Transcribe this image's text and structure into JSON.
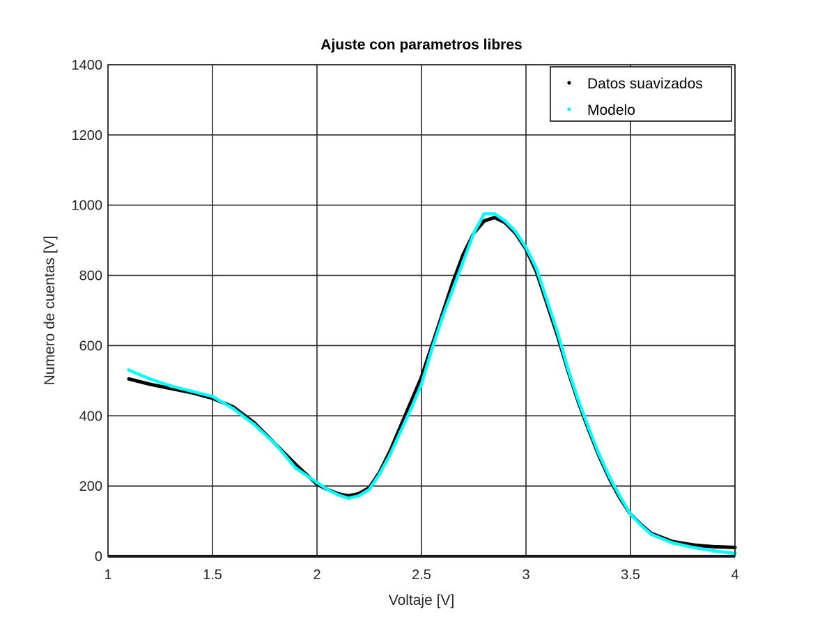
{
  "chart_data": {
    "type": "scatter",
    "title": "Ajuste con parametros libres",
    "xlabel": "Voltaje [V]",
    "ylabel": "Numero de cuentas [V]",
    "xlim": [
      1,
      4
    ],
    "ylim": [
      0,
      1400
    ],
    "xticks": [
      1,
      1.5,
      2,
      2.5,
      3,
      3.5,
      4
    ],
    "xtick_labels": [
      "1",
      "1.5",
      "2",
      "2.5",
      "3",
      "3.5",
      "4"
    ],
    "yticks": [
      0,
      200,
      400,
      600,
      800,
      1000,
      1200,
      1400
    ],
    "ytick_labels": [
      "0",
      "200",
      "400",
      "600",
      "800",
      "1000",
      "1200",
      "1400"
    ],
    "grid": true,
    "legend_position": "top-right",
    "series": [
      {
        "name": "Datos suavizados",
        "color": "#000000",
        "x": [
          1.1,
          1.2,
          1.3,
          1.4,
          1.5,
          1.6,
          1.7,
          1.8,
          1.9,
          2.0,
          2.05,
          2.1,
          2.15,
          2.2,
          2.25,
          2.3,
          2.35,
          2.4,
          2.45,
          2.5,
          2.55,
          2.6,
          2.65,
          2.7,
          2.75,
          2.8,
          2.85,
          2.9,
          2.95,
          3.0,
          3.05,
          3.1,
          3.15,
          3.2,
          3.25,
          3.3,
          3.35,
          3.4,
          3.45,
          3.5,
          3.55,
          3.6,
          3.7,
          3.8,
          3.9,
          4.0
        ],
        "y": [
          505,
          490,
          478,
          466,
          450,
          425,
          380,
          320,
          260,
          205,
          190,
          178,
          172,
          178,
          195,
          240,
          300,
          370,
          440,
          510,
          600,
          690,
          780,
          860,
          920,
          955,
          965,
          950,
          920,
          875,
          810,
          720,
          630,
          530,
          440,
          360,
          285,
          220,
          165,
          120,
          90,
          65,
          42,
          32,
          27,
          25
        ]
      },
      {
        "name": "Modelo",
        "color": "#00ffff",
        "x": [
          1.1,
          1.2,
          1.3,
          1.4,
          1.5,
          1.6,
          1.7,
          1.8,
          1.9,
          2.0,
          2.05,
          2.1,
          2.15,
          2.2,
          2.25,
          2.3,
          2.35,
          2.4,
          2.45,
          2.5,
          2.55,
          2.6,
          2.65,
          2.7,
          2.75,
          2.8,
          2.85,
          2.9,
          2.95,
          3.0,
          3.05,
          3.1,
          3.15,
          3.2,
          3.25,
          3.3,
          3.35,
          3.4,
          3.45,
          3.5,
          3.55,
          3.6,
          3.7,
          3.8,
          3.9,
          4.0
        ],
        "y": [
          530,
          505,
          485,
          470,
          455,
          420,
          375,
          320,
          250,
          210,
          190,
          175,
          165,
          172,
          190,
          235,
          290,
          355,
          420,
          490,
          590,
          680,
          760,
          840,
          920,
          975,
          975,
          955,
          925,
          880,
          820,
          730,
          640,
          535,
          445,
          365,
          290,
          225,
          170,
          120,
          88,
          62,
          38,
          25,
          15,
          8
        ]
      }
    ]
  }
}
